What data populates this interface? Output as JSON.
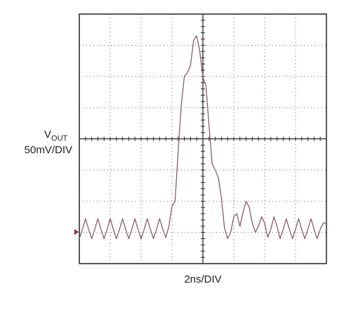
{
  "chart_data": {
    "type": "line",
    "x_label": "2ns/DIV",
    "y_label": {
      "symbol": "V",
      "subscript": "OUT",
      "scale": "50mV/DIV"
    },
    "xlim": [
      -8,
      8
    ],
    "ylim": [
      -200,
      200
    ],
    "grid": true,
    "x": [
      -8.0,
      -7.8,
      -7.6,
      -7.4,
      -7.2,
      -7.0,
      -6.8,
      -6.6,
      -6.4,
      -6.2,
      -6.0,
      -5.8,
      -5.6,
      -5.4,
      -5.2,
      -5.0,
      -4.8,
      -4.6,
      -4.4,
      -4.2,
      -4.0,
      -3.8,
      -3.6,
      -3.4,
      -3.2,
      -3.0,
      -2.8,
      -2.6,
      -2.4,
      -2.2,
      -2.0,
      -1.8,
      -1.6,
      -1.4,
      -1.2,
      -1.0,
      -0.8,
      -0.6,
      -0.4,
      -0.2,
      0.0,
      0.2,
      0.4,
      0.6,
      0.8,
      1.0,
      1.2,
      1.4,
      1.6,
      1.8,
      2.0,
      2.2,
      2.4,
      2.6,
      2.8,
      3.0,
      3.2,
      3.4,
      3.6,
      3.8,
      4.0,
      4.2,
      4.4,
      4.6,
      4.8,
      5.0,
      5.2,
      5.4,
      5.6,
      5.8,
      6.0,
      6.2,
      6.4,
      6.6,
      6.8,
      7.0,
      7.2,
      7.4,
      7.6,
      7.8,
      8.0
    ],
    "series": [
      {
        "color": "#8a5c6c",
        "values": [
          -160,
          -145,
          -128,
          -145,
          -160,
          -145,
          -128,
          -145,
          -160,
          -145,
          -128,
          -145,
          -160,
          -145,
          -128,
          -145,
          -160,
          -145,
          -128,
          -145,
          -160,
          -145,
          -128,
          -145,
          -160,
          -145,
          -128,
          -145,
          -158,
          -140,
          -108,
          -100,
          -20,
          54,
          100,
          106,
          118,
          158,
          165,
          140,
          99,
          85,
          20,
          -40,
          -50,
          -62,
          -95,
          -143,
          -160,
          -150,
          -125,
          -120,
          -140,
          -118,
          -100,
          -110,
          -135,
          -150,
          -140,
          -125,
          -135,
          -158,
          -145,
          -125,
          -140,
          -160,
          -145,
          -128,
          -145,
          -160,
          -145,
          -128,
          -145,
          -160,
          -145,
          -128,
          -145,
          -160,
          -145,
          -135,
          -135
        ]
      }
    ]
  }
}
